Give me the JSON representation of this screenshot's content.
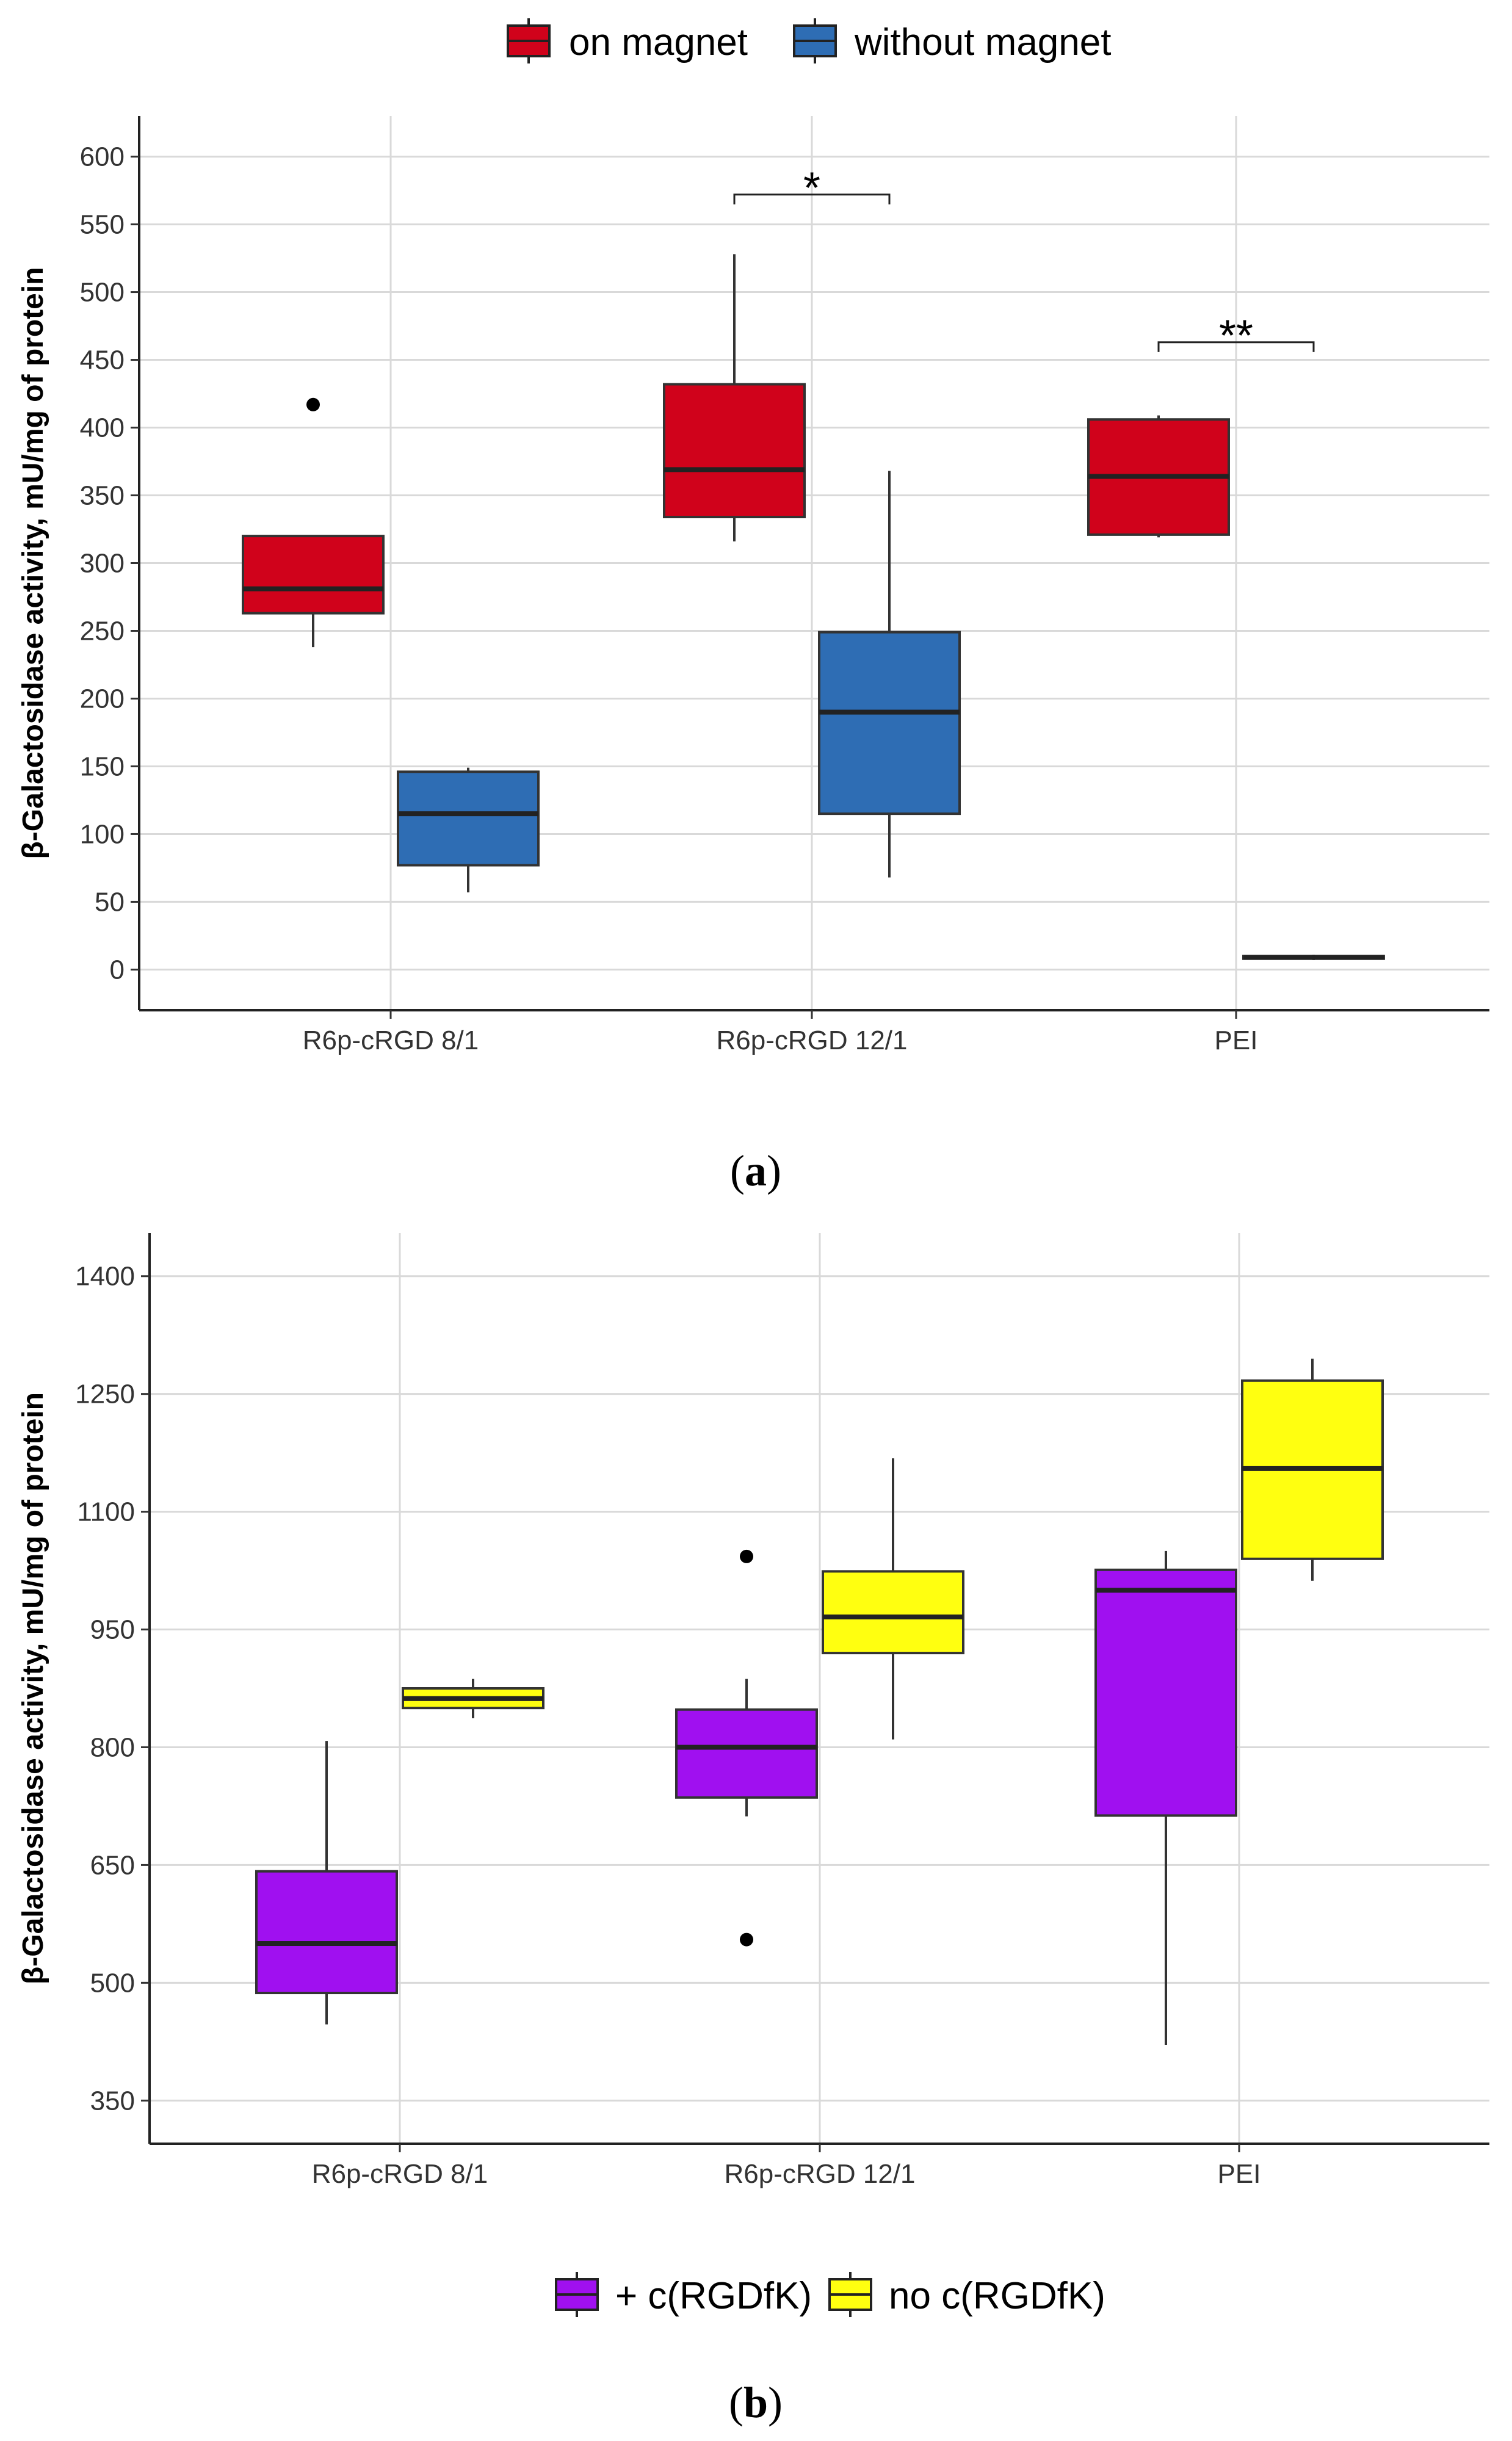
{
  "chart_data": [
    {
      "type": "boxplot",
      "panel": "a",
      "caption_letter": "a",
      "ylabel": "β-Galactosidase activity, mU/mg of protein",
      "ylim": [
        -30,
        630
      ],
      "yticks": [
        0,
        50,
        100,
        150,
        200,
        250,
        300,
        350,
        400,
        450,
        500,
        550,
        600
      ],
      "categories": [
        "R6p-cRGD 8/1",
        "R6p-cRGD 12/1",
        "PEI"
      ],
      "legend_position": "top",
      "series": [
        {
          "name": "on magnet",
          "color": "#D0021B",
          "boxes": [
            {
              "category": "R6p-cRGD 8/1",
              "min": 238,
              "q1": 263,
              "median": 281,
              "q3": 320,
              "max": 320,
              "outliers": [
                417
              ]
            },
            {
              "category": "R6p-cRGD 12/1",
              "min": 316,
              "q1": 334,
              "median": 369,
              "q3": 432,
              "max": 528,
              "outliers": []
            },
            {
              "category": "PEI",
              "min": 319,
              "q1": 321,
              "median": 364,
              "q3": 406,
              "max": 409,
              "outliers": []
            }
          ]
        },
        {
          "name": "without magnet",
          "color": "#2E6DB4",
          "boxes": [
            {
              "category": "R6p-cRGD 8/1",
              "min": 57,
              "q1": 77,
              "median": 115,
              "q3": 146,
              "max": 149,
              "outliers": []
            },
            {
              "category": "R6p-cRGD 12/1",
              "min": 68,
              "q1": 115,
              "median": 190,
              "q3": 249,
              "max": 368,
              "outliers": []
            },
            {
              "category": "PEI",
              "min": 7,
              "q1": 8,
              "median": 9,
              "q3": 10,
              "max": 11,
              "outliers": []
            }
          ]
        }
      ],
      "annotations": [
        {
          "text": "*",
          "category": "R6p-cRGD 12/1",
          "y": 572
        },
        {
          "text": "**",
          "category": "PEI",
          "y": 463
        }
      ]
    },
    {
      "type": "boxplot",
      "panel": "b",
      "caption_letter": "b",
      "ylabel": "β-Galactosidase activity, mU/mg of protein",
      "ylim": [
        295,
        1455
      ],
      "yticks": [
        350,
        500,
        650,
        800,
        950,
        1100,
        1250,
        1400
      ],
      "categories": [
        "R6p-cRGD 8/1",
        "R6p-cRGD 12/1",
        "PEI"
      ],
      "legend_position": "bottom",
      "series": [
        {
          "name": "+ c(RGDfK)",
          "color": "#A010F0",
          "boxes": [
            {
              "category": "R6p-cRGD 8/1",
              "min": 447,
              "q1": 487,
              "median": 550,
              "q3": 642,
              "max": 808,
              "outliers": []
            },
            {
              "category": "R6p-cRGD 12/1",
              "min": 712,
              "q1": 736,
              "median": 800,
              "q3": 848,
              "max": 887,
              "outliers": [
                1043,
                555
              ]
            },
            {
              "category": "PEI",
              "min": 421,
              "q1": 713,
              "median": 1000,
              "q3": 1026,
              "max": 1050,
              "outliers": []
            }
          ]
        },
        {
          "name": "no c(RGDfK)",
          "color": "#FFFF10",
          "boxes": [
            {
              "category": "R6p-cRGD 8/1",
              "min": 837,
              "q1": 850,
              "median": 862,
              "q3": 875,
              "max": 887,
              "outliers": []
            },
            {
              "category": "R6p-cRGD 12/1",
              "min": 810,
              "q1": 920,
              "median": 966,
              "q3": 1024,
              "max": 1168,
              "outliers": []
            },
            {
              "category": "PEI",
              "min": 1012,
              "q1": 1040,
              "median": 1155,
              "q3": 1267,
              "max": 1295,
              "outliers": []
            }
          ]
        }
      ]
    }
  ]
}
